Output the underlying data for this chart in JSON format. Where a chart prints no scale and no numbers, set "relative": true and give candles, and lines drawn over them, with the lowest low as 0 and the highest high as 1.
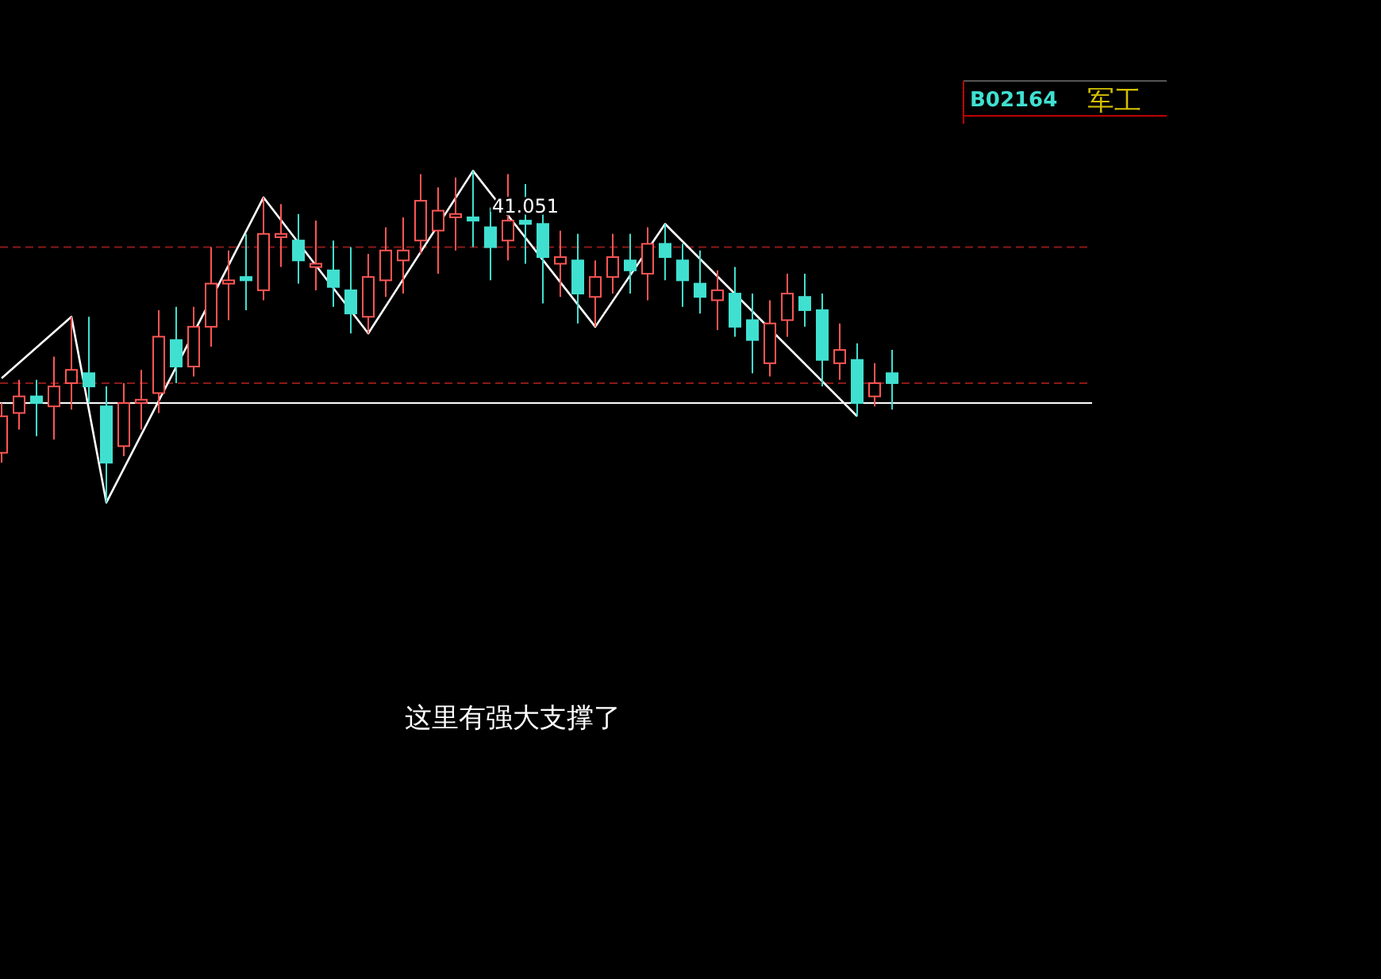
{
  "chart_data": {
    "type": "candlestick",
    "relative": true,
    "tick_labels": false,
    "categories": [
      null,
      null,
      null,
      null,
      null,
      null,
      null,
      null,
      null,
      null,
      null,
      null,
      null,
      null,
      null,
      null,
      null,
      null,
      null,
      null,
      null,
      null,
      null,
      null,
      null,
      null,
      null,
      null,
      null,
      null,
      null,
      null,
      null,
      null,
      null,
      null,
      null,
      null,
      null,
      null,
      null,
      null,
      null,
      null,
      null,
      null,
      null,
      null,
      null,
      null,
      null,
      null
    ],
    "ohlc": [
      [
        0.15,
        0.3,
        0.12,
        0.26
      ],
      [
        0.27,
        0.37,
        0.22,
        0.32
      ],
      [
        0.32,
        0.37,
        0.2,
        0.3
      ],
      [
        0.29,
        0.44,
        0.19,
        0.35
      ],
      [
        0.36,
        0.56,
        0.28,
        0.4
      ],
      [
        0.39,
        0.56,
        0.3,
        0.35
      ],
      [
        0.29,
        0.35,
        0,
        0.12
      ],
      [
        0.17,
        0.36,
        0.14,
        0.3
      ],
      [
        0.3,
        0.4,
        0.22,
        0.31
      ],
      [
        0.33,
        0.58,
        0.27,
        0.5
      ],
      [
        0.49,
        0.59,
        0.36,
        0.41
      ],
      [
        0.41,
        0.59,
        0.38,
        0.53
      ],
      [
        0.53,
        0.77,
        0.47,
        0.66
      ],
      [
        0.66,
        0.76,
        0.55,
        0.67
      ],
      [
        0.68,
        0.81,
        0.58,
        0.67
      ],
      [
        0.64,
        0.92,
        0.61,
        0.81
      ],
      [
        0.8,
        0.9,
        0.71,
        0.81
      ],
      [
        0.79,
        0.87,
        0.66,
        0.73
      ],
      [
        0.71,
        0.85,
        0.64,
        0.72
      ],
      [
        0.7,
        0.79,
        0.59,
        0.65
      ],
      [
        0.64,
        0.77,
        0.51,
        0.57
      ],
      [
        0.56,
        0.75,
        0.51,
        0.68
      ],
      [
        0.67,
        0.83,
        0.62,
        0.76
      ],
      [
        0.73,
        0.86,
        0.63,
        0.76
      ],
      [
        0.79,
        0.99,
        0.75,
        0.91
      ],
      [
        0.82,
        0.95,
        0.69,
        0.88
      ],
      [
        0.86,
        0.98,
        0.76,
        0.87
      ],
      [
        0.86,
        1,
        0.77,
        0.85
      ],
      [
        0.83,
        0.89,
        0.67,
        0.77
      ],
      [
        0.79,
        0.99,
        0.73,
        0.85
      ],
      [
        0.85,
        0.96,
        0.72,
        0.84
      ],
      [
        0.84,
        0.87,
        0.6,
        0.74
      ],
      [
        0.72,
        0.82,
        0.62,
        0.74
      ],
      [
        0.73,
        0.81,
        0.54,
        0.63
      ],
      [
        0.62,
        0.73,
        0.53,
        0.68
      ],
      [
        0.68,
        0.81,
        0.63,
        0.74
      ],
      [
        0.73,
        0.81,
        0.63,
        0.7
      ],
      [
        0.69,
        0.83,
        0.61,
        0.78
      ],
      [
        0.78,
        0.84,
        0.67,
        0.74
      ],
      [
        0.73,
        0.78,
        0.59,
        0.67
      ],
      [
        0.66,
        0.76,
        0.57,
        0.62
      ],
      [
        0.61,
        0.7,
        0.52,
        0.64
      ],
      [
        0.63,
        0.71,
        0.5,
        0.53
      ],
      [
        0.55,
        0.63,
        0.39,
        0.49
      ],
      [
        0.42,
        0.61,
        0.38,
        0.54
      ],
      [
        0.55,
        0.69,
        0.5,
        0.63
      ],
      [
        0.62,
        0.69,
        0.53,
        0.58
      ],
      [
        0.58,
        0.63,
        0.35,
        0.43
      ],
      [
        0.42,
        0.54,
        0.37,
        0.46
      ],
      [
        0.43,
        0.48,
        0.26,
        0.3
      ],
      [
        0.32,
        0.42,
        0.29,
        0.36
      ],
      [
        0.39,
        0.46,
        0.28,
        0.36
      ]
    ],
    "colors": [
      "#ff5555",
      "#ff5555",
      "#40e0d0",
      "#ff5555",
      "#ff5555",
      "#40e0d0",
      "#40e0d0",
      "#ff5555",
      "#ff5555",
      "#ff5555",
      "#40e0d0",
      "#ff5555",
      "#ff5555",
      "#ff5555",
      "#40e0d0",
      "#ff5555",
      "#ff5555",
      "#40e0d0",
      "#ff5555",
      "#40e0d0",
      "#40e0d0",
      "#ff5555",
      "#ff5555",
      "#ff5555",
      "#ff5555",
      "#ff5555",
      "#ff5555",
      "#40e0d0",
      "#40e0d0",
      "#ff5555",
      "#40e0d0",
      "#40e0d0",
      "#ff5555",
      "#40e0d0",
      "#ff5555",
      "#ff5555",
      "#40e0d0",
      "#ff5555",
      "#40e0d0",
      "#40e0d0",
      "#40e0d0",
      "#ff5555",
      "#40e0d0",
      "#40e0d0",
      "#ff5555",
      "#ff5555",
      "#40e0d0",
      "#40e0d0",
      "#ff5555",
      "#40e0d0",
      "#ff5555",
      "#40e0d0"
    ],
    "series": [
      {
        "type": "line",
        "color": "#ffffff",
        "values": [
          0.375,
          null,
          null,
          null,
          0.56,
          null,
          0,
          null,
          null,
          null,
          null,
          null,
          null,
          null,
          null,
          0.92,
          null,
          null,
          null,
          null,
          null,
          0.51,
          null,
          null,
          null,
          null,
          null,
          1,
          null,
          null,
          null,
          null,
          null,
          null,
          0.53,
          null,
          null,
          null,
          0.84,
          null,
          null,
          null,
          null,
          null,
          null,
          null,
          null,
          null,
          null,
          0.26,
          null,
          null
        ]
      }
    ],
    "ref_lines": [
      {
        "axis": "y",
        "value": 0.77,
        "color": "#8b1a1a",
        "line_style": "dashed"
      },
      {
        "axis": "y",
        "value": 0.36,
        "color": "#8b1a1a",
        "line_style": "dashed"
      },
      {
        "axis": "y",
        "value": 0.3,
        "color": "#ffffff",
        "line_style": "solid"
      }
    ],
    "annotations": [
      "41.051",
      "这里有强大支撑了",
      "B02164",
      "军工"
    ]
  }
}
